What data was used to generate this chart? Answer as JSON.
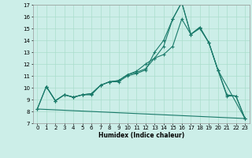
{
  "xlabel": "Humidex (Indice chaleur)",
  "bg_color": "#cceee8",
  "grid_color": "#aaddcc",
  "line_color": "#1a7a6a",
  "xlim": [
    -0.5,
    23.5
  ],
  "ylim": [
    7,
    17
  ],
  "xticks": [
    0,
    1,
    2,
    3,
    4,
    5,
    6,
    7,
    8,
    9,
    10,
    11,
    12,
    13,
    14,
    15,
    16,
    17,
    18,
    19,
    20,
    21,
    22,
    23
  ],
  "yticks": [
    7,
    8,
    9,
    10,
    11,
    12,
    13,
    14,
    15,
    16,
    17
  ],
  "line1": {
    "x": [
      0,
      1,
      2,
      3,
      4,
      5,
      6,
      7,
      8,
      9,
      10,
      11,
      12,
      13,
      14,
      15,
      16,
      17,
      18,
      19,
      20,
      21,
      22,
      23
    ],
    "y": [
      8.2,
      10.1,
      8.9,
      9.4,
      9.2,
      9.4,
      9.4,
      10.2,
      10.5,
      10.5,
      11.0,
      11.2,
      11.5,
      13.0,
      14.0,
      15.8,
      17.2,
      14.5,
      15.0,
      13.8,
      11.5,
      9.4,
      9.3,
      7.4
    ]
  },
  "line2": {
    "x": [
      1,
      2,
      3,
      4,
      5,
      6,
      7,
      8,
      9,
      10,
      11,
      12,
      13,
      14,
      15,
      16,
      17,
      18,
      19,
      20,
      23
    ],
    "y": [
      10.1,
      8.9,
      9.4,
      9.2,
      9.4,
      9.5,
      10.2,
      10.5,
      10.6,
      11.1,
      11.4,
      12.0,
      12.5,
      12.8,
      13.5,
      15.8,
      14.5,
      15.1,
      13.8,
      11.5,
      7.4
    ]
  },
  "line3": {
    "x": [
      0,
      1,
      2,
      3,
      4,
      5,
      6,
      7,
      8,
      9,
      10,
      11,
      12,
      13,
      14,
      15,
      16,
      17,
      18,
      19,
      20,
      21,
      22,
      23
    ],
    "y": [
      8.2,
      10.1,
      8.9,
      9.4,
      9.2,
      9.4,
      9.5,
      10.2,
      10.5,
      10.6,
      11.1,
      11.3,
      11.6,
      12.5,
      13.5,
      15.8,
      17.2,
      14.5,
      15.1,
      13.8,
      11.5,
      9.3,
      9.3,
      7.4
    ]
  },
  "line4": {
    "x": [
      0,
      23
    ],
    "y": [
      8.2,
      7.4
    ]
  }
}
